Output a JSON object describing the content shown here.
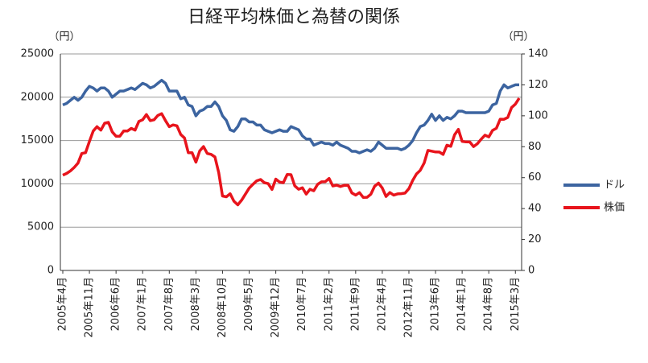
{
  "chart_data": {
    "type": "line",
    "title": "日経平均株価と為替の関係",
    "y_unit": "（円）",
    "y2_unit": "（円）",
    "categories": [
      "2005年4月",
      null,
      null,
      null,
      null,
      null,
      null,
      "2005年11月",
      null,
      null,
      null,
      null,
      null,
      null,
      "2006年6月",
      null,
      null,
      null,
      null,
      null,
      null,
      "2007年1月",
      null,
      null,
      null,
      null,
      null,
      null,
      "2007年8月",
      null,
      null,
      null,
      null,
      null,
      null,
      "2008年3月",
      null,
      null,
      null,
      null,
      null,
      null,
      "2008年10月",
      null,
      null,
      null,
      null,
      null,
      null,
      "2009年5月",
      null,
      null,
      null,
      null,
      null,
      null,
      "2009年12月",
      null,
      null,
      null,
      null,
      null,
      null,
      "2010年7月",
      null,
      null,
      null,
      null,
      null,
      null,
      "2011年2月",
      null,
      null,
      null,
      null,
      null,
      null,
      "2011年9月",
      null,
      null,
      null,
      null,
      null,
      null,
      "2012年4月",
      null,
      null,
      null,
      null,
      null,
      null,
      "2012年11月",
      null,
      null,
      null,
      null,
      null,
      null,
      "2013年6月",
      null,
      null,
      null,
      null,
      null,
      null,
      "2014年1月",
      null,
      null,
      null,
      null,
      null,
      null,
      "2014年8月",
      null,
      null,
      null,
      null,
      null,
      null,
      "2015年3月",
      null
    ],
    "series": [
      {
        "name": "ドル",
        "color": "#3c64a0",
        "axis": "y2",
        "values": [
          107,
          108,
          110,
          112,
          110,
          112,
          116,
          119,
          118,
          116,
          118,
          118,
          116,
          112,
          114,
          116,
          116,
          117,
          118,
          117,
          119,
          121,
          120,
          118,
          119,
          121,
          123,
          121,
          116,
          116,
          116,
          111,
          112,
          107,
          106,
          100,
          103,
          104,
          106,
          106,
          109,
          106,
          100,
          97,
          91,
          90,
          93,
          98,
          98,
          96,
          96,
          94,
          94,
          91,
          90,
          89,
          90,
          91,
          90,
          90,
          93,
          92,
          91,
          87,
          85,
          85,
          81,
          82,
          83,
          82,
          82,
          81,
          83,
          81,
          80,
          79,
          77,
          77,
          76,
          77,
          78,
          77,
          79,
          83,
          81,
          79,
          79,
          79,
          79,
          78,
          79,
          81,
          84,
          89,
          93,
          94,
          97,
          101,
          97,
          100,
          97,
          99,
          98,
          100,
          103,
          103,
          102,
          102,
          102,
          102,
          102,
          102,
          103,
          107,
          108,
          116,
          120,
          118,
          119,
          120,
          120
        ]
      },
      {
        "name": "株価",
        "color": "#e8141c",
        "values": [
          11000,
          11200,
          11500,
          11900,
          12400,
          13500,
          13600,
          14900,
          16100,
          16600,
          16200,
          17000,
          17100,
          16000,
          15500,
          15500,
          16100,
          16100,
          16400,
          16200,
          17200,
          17400,
          18000,
          17300,
          17400,
          17900,
          18100,
          17300,
          16600,
          16800,
          16700,
          15700,
          15300,
          13600,
          13600,
          12500,
          13800,
          14300,
          13500,
          13400,
          13100,
          11300,
          8600,
          8500,
          8860,
          7990,
          7570,
          8100,
          8800,
          9500,
          9950,
          10350,
          10500,
          10130,
          10030,
          9350,
          10550,
          10200,
          10130,
          11090,
          11060,
          9770,
          9380,
          9540,
          8820,
          9370,
          9200,
          9940,
          10230,
          10240,
          10620,
          9750,
          9850,
          9690,
          9820,
          9830,
          8950,
          8700,
          8990,
          8430,
          8450,
          8800,
          9720,
          10080,
          9520,
          8540,
          9000,
          8700,
          8840,
          8870,
          8930,
          9450,
          10400,
          11140,
          11560,
          12400,
          13860,
          13770,
          13680,
          13670,
          13390,
          14460,
          14330,
          15660,
          16290,
          14910,
          14840,
          14830,
          14300,
          14630,
          15160,
          15620,
          15420,
          16170,
          16410,
          17460,
          17450,
          17670,
          18800,
          19210,
          19900
        ]
      }
    ],
    "ylim": [
      0,
      25000
    ],
    "yticks": [
      0,
      5000,
      10000,
      15000,
      20000,
      25000
    ],
    "y2lim": [
      0,
      140
    ],
    "y2ticks": [
      0,
      20,
      40,
      60,
      80,
      100,
      120,
      140
    ],
    "grid": true,
    "legend": "right"
  }
}
